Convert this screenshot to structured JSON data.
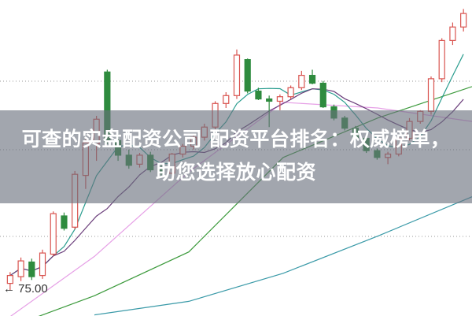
{
  "chart_data": {
    "type": "candlestick",
    "title": "",
    "xlabel": "",
    "ylabel": "",
    "ylim": [
      72.7,
      100.8
    ],
    "grid": "horizontal-dotted",
    "up_color": "#d9534f",
    "down_color": "#2e8b3e",
    "candles_ohlc": [
      [
        75.6,
        76.6,
        75.0,
        76.3
      ],
      [
        76.2,
        77.9,
        75.8,
        77.6
      ],
      [
        77.5,
        77.8,
        75.9,
        76.2
      ],
      [
        76.3,
        78.6,
        76.0,
        78.3
      ],
      [
        78.2,
        82.0,
        78.0,
        81.8
      ],
      [
        81.6,
        81.9,
        80.3,
        80.5
      ],
      [
        80.6,
        85.6,
        80.4,
        85.3
      ],
      [
        85.2,
        88.4,
        84.0,
        88.1
      ],
      [
        88.0,
        90.5,
        86.5,
        90.2
      ],
      [
        94.4,
        94.6,
        88.0,
        88.2
      ],
      [
        88.3,
        88.9,
        86.5,
        87.0
      ],
      [
        87.0,
        87.5,
        85.8,
        86.1
      ],
      [
        86.2,
        87.2,
        85.9,
        87.0
      ],
      [
        87.0,
        87.3,
        85.5,
        85.7
      ],
      [
        85.8,
        86.2,
        85.2,
        85.4
      ],
      [
        85.4,
        87.2,
        85.3,
        87.1
      ],
      [
        87.1,
        88.0,
        86.8,
        87.8
      ],
      [
        87.8,
        88.9,
        87.5,
        88.6
      ],
      [
        88.6,
        89.8,
        88.3,
        89.5
      ],
      [
        89.5,
        91.8,
        89.3,
        91.6
      ],
      [
        91.6,
        92.6,
        91.2,
        92.3
      ],
      [
        92.3,
        96.4,
        92.0,
        95.9
      ],
      [
        95.5,
        95.6,
        92.5,
        92.7
      ],
      [
        92.7,
        93.0,
        91.9,
        92.0
      ],
      [
        92.0,
        92.3,
        89.5,
        91.8
      ],
      [
        91.8,
        92.4,
        91.0,
        92.2
      ],
      [
        92.2,
        93.2,
        92.0,
        93.0
      ],
      [
        93.0,
        94.5,
        92.8,
        94.1
      ],
      [
        94.1,
        94.6,
        93.3,
        93.4
      ],
      [
        93.4,
        93.6,
        91.2,
        91.3
      ],
      [
        91.3,
        91.5,
        90.1,
        90.3
      ],
      [
        90.3,
        90.5,
        89.2,
        89.4
      ],
      [
        89.4,
        89.6,
        88.3,
        88.5
      ],
      [
        88.5,
        88.7,
        87.2,
        87.4
      ],
      [
        87.4,
        87.6,
        86.6,
        86.8
      ],
      [
        86.8,
        87.3,
        86.2,
        87.1
      ],
      [
        87.1,
        88.6,
        86.9,
        88.5
      ],
      [
        88.5,
        90.3,
        88.3,
        90.0
      ],
      [
        90.0,
        91.0,
        89.8,
        90.9
      ],
      [
        90.9,
        94.0,
        90.6,
        93.8
      ],
      [
        93.8,
        97.4,
        93.5,
        97.2
      ],
      [
        97.2,
        98.8,
        96.8,
        98.4
      ],
      [
        98.4,
        100.0,
        98.0,
        99.6
      ]
    ],
    "moving_averages": [
      {
        "period": 5,
        "color": "#2a9d8f"
      },
      {
        "period": 10,
        "color": "#6a3d7a"
      }
    ],
    "long_lines": [
      {
        "color": "#e6a0e6",
        "values": [
          72.0,
          78.0,
          85.5,
          91.7,
          91.2,
          90.0
        ]
      },
      {
        "color": "#3c9a3c",
        "values": [
          71.4,
          74.5,
          78.4,
          86.8,
          90.3,
          93.1
        ]
      },
      {
        "color": "#3a9aa8",
        "values": [
          null,
          72.8,
          74.0,
          76.5,
          79.8,
          83.3
        ]
      }
    ],
    "annotations": [
      {
        "text": "75.00",
        "marks": "lowest-low"
      }
    ]
  },
  "overlay": {
    "line1": "可查的实盘配资公司 配资平台排名：权威榜单，",
    "line2": "助您选择放心配资"
  }
}
